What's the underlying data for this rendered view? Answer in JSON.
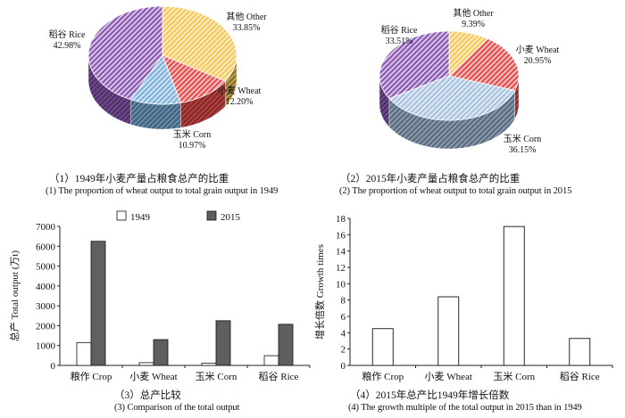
{
  "chart_data": [
    {
      "type": "pie",
      "title_cn": "（1）1949年小麦产量占粮食总产的比重",
      "title_en": "(1) The proportion of wheat output to total grain output in 1949",
      "slices": [
        {
          "label": "其他 Other",
          "value": 33.85,
          "text": "33.85%",
          "color": "#f5c95a"
        },
        {
          "label": "小麦 Wheat",
          "value": 12.2,
          "text": "12.20%",
          "color": "#e8504f"
        },
        {
          "label": "玉米 Corn",
          "value": 10.97,
          "text": "10.97%",
          "color": "#7fb2dc"
        },
        {
          "label": "稻谷 Rice",
          "value": 42.98,
          "text": "42.98%",
          "color": "#8d5bb5"
        }
      ]
    },
    {
      "type": "pie",
      "title_cn": "（2）2015年小麦产量占粮食总产的比重",
      "title_en": "(2) The proportion of wheat output to total grain output in 2015",
      "slices": [
        {
          "label": "其他 Other",
          "value": 9.39,
          "text": "9.39%",
          "color": "#f5c95a"
        },
        {
          "label": "小麦 Wheat",
          "value": 20.95,
          "text": "20.95%",
          "color": "#e8504f"
        },
        {
          "label": "玉米 Corn",
          "value": 36.15,
          "text": "36.15%",
          "color": "#a9c3e0"
        },
        {
          "label": "稻谷 Rice",
          "value": 33.51,
          "text": "33.51%",
          "color": "#8d5bb5"
        }
      ]
    },
    {
      "type": "bar",
      "title_cn": "（3）总产比较",
      "title_en": "(3) Comparison of the total output",
      "ylabel": "总产 Total output (万t)",
      "categories": [
        "粮作 Crop",
        "小麦 Wheat",
        "玉米 Corn",
        "稻谷 Rice"
      ],
      "series": [
        {
          "name": "1949",
          "values": [
            1150,
            140,
            110,
            490
          ],
          "color": "#ffffff"
        },
        {
          "name": "2015",
          "values": [
            6250,
            1300,
            2250,
            2070
          ],
          "color": "#5f5f5f"
        }
      ],
      "ylim": [
        0,
        7000
      ],
      "yticks": [
        "0",
        "1000",
        "2000",
        "3000",
        "4000",
        "5000",
        "6000",
        "7000"
      ],
      "legend": "top"
    },
    {
      "type": "bar",
      "title_cn": "（4）2015年总产比1949年增长倍数",
      "title_en": "(4) The growth multiple of the total output in 2015 than in 1949",
      "ylabel": "增长倍数 Growth times",
      "categories": [
        "粮作 Crop",
        "小麦 Wheat",
        "玉米 Corn",
        "稻谷 Rice"
      ],
      "values": [
        4.5,
        8.4,
        17.0,
        3.3
      ],
      "ylim": [
        0,
        18
      ],
      "yticks": [
        "0",
        "2",
        "4",
        "6",
        "8",
        "10",
        "12",
        "14",
        "16",
        "18"
      ]
    }
  ]
}
